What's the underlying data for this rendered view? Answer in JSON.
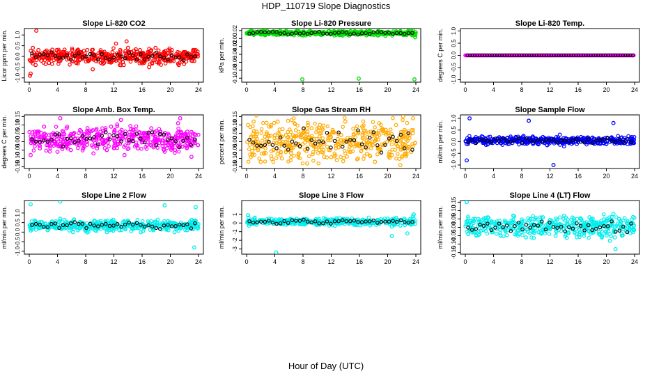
{
  "figure": {
    "title": "HDP_110719  Slope Diagnostics",
    "xlabel": "Hour of Day (UTC)"
  },
  "chart_data": [
    {
      "type": "scatter",
      "title": "Slope Li-820 CO2",
      "ylabel": "Licor ppm per min.",
      "xlim": [
        0,
        24
      ],
      "xticks": [
        "0",
        "4",
        "8",
        "12",
        "16",
        "20",
        "24"
      ],
      "ylim": [
        -1.2,
        1.3
      ],
      "yticks": [
        -1.0,
        -0.5,
        0.0,
        0.5,
        1.0
      ],
      "ytick_labels": [
        "-1.0",
        "-0.5",
        "0.0",
        "0.5",
        "1.0"
      ],
      "color": "#ff0000",
      "series": [
        {
          "values_desc": "scatter",
          "x": [
            0.1,
            0.5,
            0.9,
            1.3,
            1.7,
            2.2,
            2.8,
            3.3,
            3.9,
            4.4,
            5.0,
            5.6,
            6.1,
            6.7,
            7.2,
            7.8,
            8.4,
            8.9,
            9.5,
            10.1,
            10.6,
            11.2,
            11.8,
            12.3,
            12.9,
            13.4,
            14.0,
            14.6,
            15.1,
            15.7,
            16.2,
            16.8,
            17.4,
            17.9,
            18.5,
            19.1,
            19.6,
            20.2,
            20.8,
            21.3,
            21.9,
            22.5,
            23.0,
            23.6,
            23.9,
            1.0,
            12.3,
            13.8,
            0.2,
            9.0,
            17.0,
            21.2,
            23.9
          ],
          "y": [
            -0.9,
            0.4,
            -0.4,
            0.3,
            -0.2,
            0.2,
            -0.3,
            0.1,
            0.3,
            -0.2,
            0.2,
            -0.1,
            0.3,
            -0.3,
            0.2,
            0.0,
            -0.2,
            0.3,
            -0.1,
            0.2,
            -0.3,
            0.1,
            0.2,
            -0.2,
            0.3,
            -0.4,
            0.4,
            -0.1,
            0.1,
            0.3,
            -0.2,
            0.2,
            -0.3,
            0.4,
            -0.1,
            0.2,
            -0.2,
            0.3,
            0.0,
            -0.3,
            0.2,
            0.1,
            -0.2,
            0.3,
            0.1,
            1.2,
            0.6,
            0.7,
            -0.8,
            -0.6,
            -0.5,
            -0.4,
            0.0
          ]
        }
      ]
    },
    {
      "type": "scatter",
      "title": "Slope Li-820 Pressure",
      "ylabel": "kPa per min.",
      "xlim": [
        0,
        24
      ],
      "xticks": [
        "0",
        "4",
        "8",
        "12",
        "16",
        "20",
        "24"
      ],
      "ylim": [
        -0.11,
        0.025
      ],
      "yticks": [
        -0.1,
        -0.08,
        -0.06,
        -0.04,
        -0.02,
        0.0,
        0.02
      ],
      "ytick_labels": [
        "-0.10",
        "-0.08",
        "-0.06",
        "-0.04",
        "-0.02",
        "0.00",
        "0.02"
      ],
      "color": "#00dd00",
      "series": [
        {
          "values_desc": "scatter",
          "x": [
            0.2,
            0.8,
            1.4,
            2.0,
            2.6,
            3.2,
            3.8,
            4.4,
            5.0,
            5.6,
            6.2,
            6.8,
            7.4,
            8.0,
            8.6,
            9.2,
            9.8,
            10.4,
            11.0,
            11.6,
            12.2,
            12.8,
            13.4,
            14.0,
            14.6,
            15.2,
            15.8,
            16.4,
            17.0,
            17.6,
            18.2,
            18.8,
            19.4,
            20.0,
            20.6,
            21.2,
            21.8,
            22.4,
            23.0,
            23.6,
            23.9,
            7.9,
            15.9,
            23.8
          ],
          "y": [
            0.012,
            0.016,
            0.014,
            0.018,
            0.01,
            0.015,
            0.013,
            0.017,
            0.011,
            0.016,
            0.014,
            0.012,
            0.018,
            0.015,
            0.013,
            0.017,
            0.01,
            0.016,
            0.014,
            0.018,
            0.012,
            0.015,
            0.013,
            0.017,
            0.011,
            0.016,
            0.014,
            0.012,
            0.018,
            0.015,
            0.013,
            0.017,
            0.01,
            0.016,
            0.014,
            0.018,
            0.012,
            0.015,
            0.013,
            0.02,
            0.003,
            -0.103,
            -0.101,
            -0.103
          ]
        }
      ]
    },
    {
      "type": "scatter",
      "title": "Slope Li-820 Temp.",
      "ylabel": "degrees C per min.",
      "xlim": [
        0,
        24
      ],
      "xticks": [
        "0",
        "4",
        "8",
        "12",
        "16",
        "20",
        "24"
      ],
      "ylim": [
        -1.1,
        1.1
      ],
      "yticks": [
        -1.0,
        -0.5,
        0.0,
        0.5,
        1.0
      ],
      "ytick_labels": [
        "-1.0",
        "-0.5",
        "0.0",
        "0.5",
        "1.0"
      ],
      "color": "#ff00ff",
      "series": [
        {
          "values_desc": "flat",
          "x": [
            0.0,
            24.0
          ],
          "y": [
            0.0,
            0.0
          ]
        }
      ]
    },
    {
      "type": "scatter",
      "title": "Slope Amb. Box Temp.",
      "ylabel": "degrees C per min.",
      "xlim": [
        0,
        24
      ],
      "xticks": [
        "0",
        "4",
        "8",
        "12",
        "16",
        "20",
        "24"
      ],
      "ylim": [
        -0.16,
        0.16
      ],
      "yticks": [
        -0.15,
        -0.1,
        -0.05,
        0.0,
        0.05,
        0.1,
        0.15
      ],
      "ytick_labels": [
        "-0.15",
        "-0.10",
        "-0.05",
        "0.00",
        "0.05",
        "0.10",
        "0.15"
      ],
      "color": "#ff00ff",
      "series": [
        {
          "values_desc": "scatter",
          "x": [
            0.2,
            0.8,
            1.5,
            2.1,
            2.7,
            3.4,
            4.0,
            4.6,
            5.3,
            5.9,
            6.5,
            7.2,
            7.8,
            8.4,
            9.1,
            9.7,
            10.3,
            11.0,
            11.6,
            12.2,
            12.9,
            13.5,
            14.1,
            14.8,
            15.4,
            16.0,
            16.7,
            17.3,
            17.9,
            18.6,
            19.2,
            19.8,
            20.5,
            21.1,
            21.7,
            22.4,
            23.0,
            23.6,
            4.4,
            13.0,
            21.4
          ],
          "y": [
            -0.08,
            0.06,
            -0.04,
            0.09,
            -0.02,
            0.05,
            -0.06,
            0.03,
            0.08,
            -0.05,
            0.02,
            0.07,
            -0.03,
            0.05,
            -0.07,
            0.04,
            0.01,
            -0.05,
            0.09,
            -0.02,
            0.06,
            -0.08,
            0.03,
            0.07,
            -0.04,
            0.05,
            -0.02,
            0.08,
            0.0,
            0.06,
            -0.06,
            0.04,
            0.02,
            0.11,
            -0.03,
            0.06,
            -0.09,
            0.04,
            0.14,
            0.13,
            0.14
          ]
        }
      ]
    },
    {
      "type": "scatter",
      "title": "Slope Gas Stream RH",
      "ylabel": "percent per min.",
      "xlim": [
        0,
        24
      ],
      "xticks": [
        "0",
        "4",
        "8",
        "12",
        "16",
        "20",
        "24"
      ],
      "ylim": [
        -0.16,
        0.16
      ],
      "yticks": [
        -0.15,
        -0.1,
        -0.05,
        0.0,
        0.05,
        0.1,
        0.15
      ],
      "ytick_labels": [
        "-0.15",
        "-0.10",
        "-0.05",
        "0.00",
        "0.05",
        "0.10",
        "0.15"
      ],
      "color": "#ffaa00",
      "series": [
        {
          "values_desc": "scatter",
          "x": [
            0.2,
            0.8,
            1.4,
            2.0,
            2.6,
            3.2,
            3.8,
            4.4,
            5.0,
            5.6,
            6.2,
            6.8,
            7.4,
            8.0,
            8.6,
            9.2,
            9.8,
            10.4,
            11.0,
            11.6,
            12.2,
            12.8,
            13.4,
            14.0,
            14.6,
            15.2,
            15.8,
            16.4,
            17.0,
            17.6,
            18.2,
            18.8,
            19.4,
            20.0,
            20.6,
            21.2,
            21.8,
            22.4,
            23.0,
            23.6,
            7.5,
            1.0,
            22.2
          ],
          "y": [
            0.1,
            -0.08,
            0.06,
            -0.12,
            0.03,
            0.09,
            -0.05,
            0.12,
            -0.1,
            0.04,
            -0.02,
            0.11,
            -0.07,
            0.05,
            -0.13,
            0.08,
            -0.03,
            0.1,
            -0.09,
            0.02,
            0.07,
            -0.11,
            0.04,
            0.12,
            -0.06,
            0.01,
            -0.1,
            0.09,
            -0.04,
            0.06,
            -0.12,
            0.11,
            -0.02,
            0.05,
            -0.08,
            0.1,
            -0.14,
            0.07,
            -0.03,
            0.14,
            0.17,
            0.12,
            0.15
          ]
        }
      ]
    },
    {
      "type": "scatter",
      "title": "Slope Sample Flow",
      "ylabel": "ml/min per min.",
      "xlim": [
        0,
        24
      ],
      "xticks": [
        "0",
        "4",
        "8",
        "12",
        "16",
        "20",
        "24"
      ],
      "ylim": [
        -1.15,
        1.15
      ],
      "yticks": [
        -1.0,
        -0.5,
        0.0,
        0.5,
        1.0
      ],
      "ytick_labels": [
        "-1.0",
        "-0.5",
        "0.0",
        "0.5",
        "1.0"
      ],
      "color": "#0000ff",
      "series": [
        {
          "values_desc": "scatter",
          "x": [
            0.2,
            0.8,
            1.4,
            2.0,
            2.6,
            3.2,
            3.8,
            4.4,
            5.0,
            5.6,
            6.2,
            6.8,
            7.4,
            8.0,
            8.6,
            9.2,
            9.8,
            10.4,
            11.0,
            11.6,
            12.2,
            12.8,
            13.4,
            14.0,
            14.6,
            15.2,
            15.8,
            16.4,
            17.0,
            17.6,
            18.2,
            18.8,
            19.4,
            20.0,
            20.6,
            21.2,
            21.8,
            22.4,
            23.0,
            23.6,
            0.6,
            9.0,
            12.5,
            21.0,
            0.2
          ],
          "y": [
            -0.1,
            0.1,
            -0.05,
            0.05,
            0.0,
            -0.1,
            0.1,
            0.05,
            -0.05,
            0.1,
            -0.1,
            0.05,
            0.0,
            0.1,
            -0.05,
            0.15,
            0.05,
            -0.1,
            0.2,
            -0.15,
            0.1,
            0.0,
            0.3,
            -0.2,
            0.1,
            0.05,
            -0.1,
            0.2,
            0.0,
            0.1,
            -0.05,
            0.05,
            0.1,
            -0.1,
            0.15,
            0.0,
            -0.05,
            0.1,
            -0.1,
            0.2,
            1.0,
            0.9,
            -1.0,
            0.8,
            -0.8
          ]
        }
      ]
    },
    {
      "type": "scatter",
      "title": "Slope Line 2 Flow",
      "ylabel": "ml/min per min.",
      "xlim": [
        0,
        24
      ],
      "xticks": [
        "0",
        "4",
        "8",
        "12",
        "16",
        "20",
        "24"
      ],
      "ylim": [
        -1.15,
        1.65
      ],
      "yticks": [
        -1.0,
        -0.5,
        0.0,
        0.5,
        1.0
      ],
      "ytick_labels": [
        "-1.0",
        "-0.5",
        "0.0",
        "0.5",
        "1.0"
      ],
      "color": "#00eeee",
      "series": [
        {
          "values_desc": "scatter",
          "x": [
            0.2,
            0.8,
            1.4,
            2.0,
            2.6,
            3.2,
            3.8,
            4.4,
            5.0,
            5.6,
            6.2,
            6.8,
            7.4,
            8.0,
            8.6,
            9.2,
            9.8,
            10.4,
            11.0,
            11.6,
            12.2,
            12.8,
            13.4,
            14.0,
            14.6,
            15.2,
            15.8,
            16.4,
            17.0,
            17.6,
            18.2,
            18.8,
            19.4,
            20.0,
            20.6,
            21.2,
            21.8,
            22.4,
            23.0,
            23.6,
            0.2,
            4.4,
            19.2,
            23.6,
            23.4
          ],
          "y": [
            0.3,
            0.6,
            0.2,
            0.4,
            0.1,
            0.5,
            0.3,
            0.7,
            0.2,
            0.4,
            0.0,
            0.3,
            0.5,
            0.1,
            0.3,
            0.6,
            0.2,
            0.4,
            0.0,
            0.3,
            0.5,
            0.1,
            0.3,
            0.6,
            0.2,
            0.4,
            0.0,
            0.3,
            0.5,
            0.1,
            0.3,
            0.4,
            0.2,
            0.5,
            0.0,
            0.3,
            0.4,
            0.1,
            0.3,
            0.6,
            1.45,
            1.6,
            1.4,
            1.3,
            -0.8
          ]
        }
      ]
    },
    {
      "type": "scatter",
      "title": "Slope Line 3 Flow",
      "ylabel": "ml/min per min.",
      "xlim": [
        0,
        24
      ],
      "xticks": [
        "0",
        "4",
        "8",
        "12",
        "16",
        "20",
        "24"
      ],
      "ylim": [
        -3.6,
        2.6
      ],
      "yticks": [
        -3,
        -2,
        -1,
        0,
        1
      ],
      "ytick_labels": [
        "-3",
        "-2",
        "-1",
        "0",
        "1"
      ],
      "color": "#00eeee",
      "series": [
        {
          "values_desc": "scatter",
          "x": [
            0.2,
            0.8,
            1.4,
            2.0,
            2.6,
            3.2,
            3.8,
            4.4,
            5.0,
            5.6,
            6.2,
            6.8,
            7.4,
            8.0,
            8.6,
            9.2,
            9.8,
            10.4,
            11.0,
            11.6,
            12.2,
            12.8,
            13.4,
            14.0,
            14.6,
            15.2,
            15.8,
            16.4,
            17.0,
            17.6,
            18.2,
            18.8,
            19.4,
            20.0,
            20.6,
            21.2,
            21.8,
            22.4,
            23.0,
            23.6,
            4.2,
            20.6,
            22.8,
            0.2,
            23.7
          ],
          "y": [
            0.1,
            0.4,
            -0.2,
            0.3,
            0.0,
            0.5,
            -0.1,
            0.2,
            0.4,
            -0.2,
            0.3,
            0.0,
            0.2,
            -0.1,
            0.4,
            0.1,
            0.3,
            -0.2,
            0.2,
            0.0,
            0.4,
            -0.1,
            0.3,
            0.1,
            0.2,
            -0.2,
            0.4,
            0.0,
            0.3,
            0.1,
            0.2,
            -0.1,
            0.3,
            0.5,
            -0.4,
            0.6,
            -0.3,
            0.5,
            0.2,
            0.8,
            -3.4,
            -1.5,
            -1.2,
            0.9,
            1.0
          ]
        }
      ]
    },
    {
      "type": "scatter",
      "title": "Slope Line 4 (LT) Flow",
      "ylabel": "ml/min per min.",
      "xlim": [
        0,
        24
      ],
      "xticks": [
        "0",
        "4",
        "8",
        "12",
        "16",
        "20",
        "24"
      ],
      "ylim": [
        -0.16,
        0.16
      ],
      "yticks": [
        -0.15,
        -0.1,
        -0.05,
        0.0,
        0.05,
        0.1,
        0.15
      ],
      "ytick_labels": [
        "-0.15",
        "-0.10",
        "-0.05",
        "0.00",
        "0.05",
        "0.10",
        "0.15"
      ],
      "color": "#00eeee",
      "series": [
        {
          "values_desc": "scatter",
          "x": [
            0.2,
            0.8,
            1.4,
            2.0,
            2.6,
            3.2,
            3.8,
            4.4,
            5.0,
            5.6,
            6.2,
            6.8,
            7.4,
            8.0,
            8.6,
            9.2,
            9.8,
            10.4,
            11.0,
            11.6,
            12.2,
            12.8,
            13.4,
            14.0,
            14.6,
            15.2,
            15.8,
            16.4,
            17.0,
            17.6,
            18.2,
            18.8,
            19.4,
            20.0,
            20.6,
            21.2,
            21.8,
            22.4,
            23.0,
            23.6,
            0.2,
            21.0,
            21.3,
            20.5
          ],
          "y": [
            0.03,
            -0.02,
            0.05,
            -0.04,
            0.01,
            0.06,
            -0.03,
            0.02,
            -0.05,
            0.04,
            0.0,
            0.07,
            -0.02,
            0.03,
            -0.06,
            0.05,
            0.01,
            -0.03,
            0.06,
            -0.01,
            0.04,
            -0.05,
            0.02,
            0.07,
            -0.03,
            0.01,
            -0.04,
            0.05,
            0.0,
            0.06,
            -0.02,
            0.03,
            -0.05,
            0.04,
            0.01,
            -0.06,
            0.05,
            -0.01,
            0.03,
            -0.02,
            0.15,
            0.08,
            -0.13,
            -0.08
          ]
        }
      ]
    }
  ]
}
